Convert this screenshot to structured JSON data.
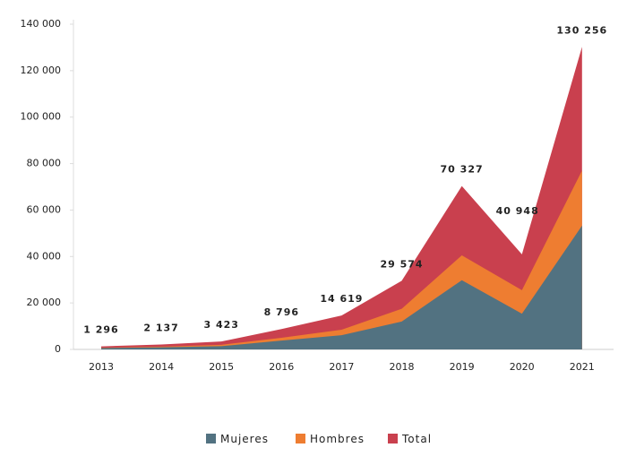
{
  "chart_data": {
    "type": "area",
    "categories": [
      "2013",
      "2014",
      "2015",
      "2016",
      "2017",
      "2018",
      "2019",
      "2020",
      "2021"
    ],
    "series": [
      {
        "name": "Mujeres",
        "color": "#527281",
        "values": [
          600,
          900,
          1400,
          3800,
          6100,
          12000,
          29800,
          15400,
          53300
        ]
      },
      {
        "name": "Hombres",
        "color": "#ee7d31",
        "values": [
          700,
          1200,
          2000,
          5000,
          8500,
          17500,
          40500,
          25500,
          77000
        ]
      },
      {
        "name": "Total",
        "color": "#c9404e",
        "values": [
          1296,
          2137,
          3423,
          8796,
          14619,
          29574,
          70327,
          40948,
          130256
        ],
        "value_labels": [
          "1 296",
          "2 137",
          "3 423",
          "8 796",
          "14 619",
          "29 574",
          "70 327",
          "40 948",
          "130 256"
        ]
      }
    ],
    "ylim": [
      0,
      140000
    ],
    "yticks": [
      0,
      {
        "value": 20000,
        "label": "20 000"
      },
      {
        "value": 40000,
        "label": "40 000"
      },
      {
        "value": 60000,
        "label": "60 000"
      },
      {
        "value": 80000,
        "label": "80 000"
      },
      {
        "value": 100000,
        "label": "100 000"
      },
      {
        "value": 120000,
        "label": "120 000"
      },
      {
        "value": 140000,
        "label": "140 000"
      }
    ],
    "legend": "bottom"
  }
}
